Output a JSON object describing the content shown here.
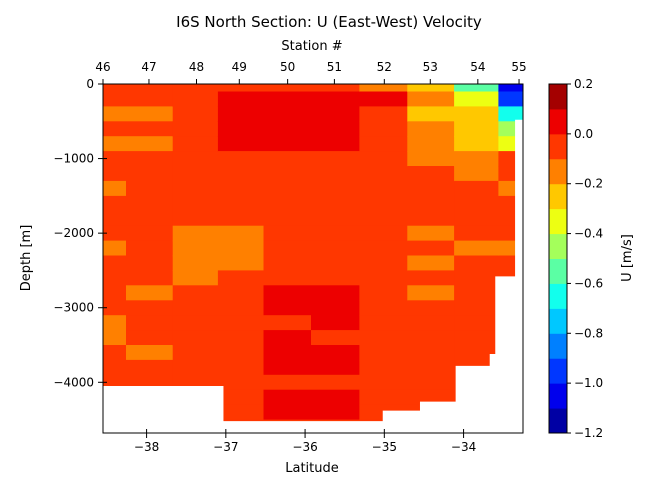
{
  "chart_data": {
    "type": "heatmap",
    "title": "I6S North Section: U (East-West) Velocity",
    "xlabel": "Latitude",
    "ylabel": "Depth [m]",
    "top_xlabel": "Station #",
    "colorbar_label": "U [m/s]",
    "xlim": [
      -38.55,
      -33.25
    ],
    "ylim": [
      -4680,
      0
    ],
    "x_ticks": [
      -38,
      -37,
      -36,
      -35,
      -34
    ],
    "x_tick_labels": [
      "−38",
      "−37",
      "−36",
      "−35",
      "−34"
    ],
    "y_ticks": [
      0,
      -1000,
      -2000,
      -3000,
      -4000
    ],
    "y_tick_labels": [
      "0",
      "−1000",
      "−2000",
      "−3000",
      "−4000"
    ],
    "top_ticks": [
      {
        "label": "46",
        "lat": -38.55
      },
      {
        "label": "47",
        "lat": -37.97
      },
      {
        "label": "48",
        "lat": -37.37
      },
      {
        "label": "49",
        "lat": -36.83
      },
      {
        "label": "50",
        "lat": -36.22
      },
      {
        "label": "51",
        "lat": -35.63
      },
      {
        "label": "52",
        "lat": -35.0
      },
      {
        "label": "53",
        "lat": -34.42
      },
      {
        "label": "54",
        "lat": -33.82
      },
      {
        "label": "55",
        "lat": -33.3
      }
    ],
    "colorbar": {
      "min": -1.2,
      "max": 0.2,
      "step": 0.1,
      "ticks": [
        0.2,
        0.0,
        -0.2,
        -0.4,
        -0.6,
        -0.8,
        -1.0,
        -1.2
      ],
      "tick_labels": [
        "0.2",
        "0.0",
        "−0.2",
        "−0.4",
        "−0.6",
        "−0.8",
        "−1.0",
        "−1.2"
      ]
    },
    "colors": {
      "dark_red": "#b00000",
      "red": "#ee1a00",
      "orange_red": "#ff5a00",
      "orange": "#ff9a00",
      "light_orange": "#ffc000",
      "yellow": "#e8ee00",
      "cyan": "#30d8ff",
      "blue": "#1030ff"
    },
    "bottom_profile": [
      {
        "lat": -38.55,
        "depth": -4050
      },
      {
        "lat": -37.03,
        "depth": -4520
      },
      {
        "lat": -35.02,
        "depth": -4380
      },
      {
        "lat": -34.55,
        "depth": -4260
      },
      {
        "lat": -34.1,
        "depth": -3780
      },
      {
        "lat": -33.67,
        "depth": -3620
      },
      {
        "lat": -33.6,
        "depth": -2580
      },
      {
        "lat": -33.35,
        "depth": -2580
      },
      {
        "lat": -33.35,
        "depth": -480
      },
      {
        "lat": -33.25,
        "depth": -480
      }
    ],
    "sections": [
      {
        "station": 46,
        "lat": -38.55,
        "u": [
          -0.1,
          -0.1,
          -0.15,
          -0.1,
          -0.15,
          -0.1,
          -0.1,
          -0.15,
          -0.1,
          -0.05,
          -0.1,
          -0.15,
          -0.1,
          -0.05,
          -0.1,
          -0.1,
          -0.15,
          -0.15,
          -0.1,
          -0.1,
          -0.1,
          -0.1,
          -0.05,
          -0.05
        ]
      },
      {
        "station": 47,
        "lat": -37.97,
        "u": [
          -0.1,
          -0.05,
          -0.15,
          -0.1,
          -0.15,
          -0.1,
          -0.1,
          -0.1,
          -0.1,
          -0.1,
          -0.1,
          -0.1,
          -0.1,
          -0.1,
          -0.15,
          -0.1,
          -0.1,
          -0.1,
          -0.15,
          -0.1,
          -0.1,
          -0.15,
          -0.1,
          -0.05
        ]
      },
      {
        "station": 48,
        "lat": -37.37,
        "u": [
          -0.05,
          -0.05,
          -0.1,
          -0.05,
          -0.1,
          -0.1,
          -0.1,
          -0.1,
          -0.1,
          -0.1,
          -0.15,
          -0.2,
          -0.2,
          -0.15,
          -0.1,
          -0.1,
          -0.1,
          -0.1,
          -0.1,
          -0.1,
          -0.1,
          -0.1,
          -0.1,
          -0.05
        ]
      },
      {
        "station": 49,
        "lat": -36.83,
        "u": [
          -0.05,
          0.05,
          0.05,
          0.0,
          0.0,
          -0.1,
          -0.1,
          -0.1,
          -0.1,
          -0.1,
          -0.15,
          -0.2,
          -0.15,
          -0.1,
          -0.1,
          -0.1,
          -0.05,
          -0.05,
          -0.1,
          -0.05,
          -0.05,
          -0.05,
          -0.05,
          -0.05
        ]
      },
      {
        "station": 50,
        "lat": -36.22,
        "u": [
          -0.05,
          0.05,
          0.05,
          0.0,
          0.0,
          -0.1,
          -0.1,
          -0.1,
          -0.1,
          -0.1,
          -0.1,
          -0.1,
          -0.1,
          -0.05,
          0.0,
          0.0,
          -0.05,
          0.0,
          0.0,
          0.0,
          -0.05,
          0.0,
          0.0,
          -0.05
        ]
      },
      {
        "station": 51,
        "lat": -35.63,
        "u": [
          -0.05,
          0.0,
          0.0,
          0.0,
          0.0,
          -0.1,
          -0.1,
          -0.1,
          -0.1,
          -0.1,
          -0.1,
          -0.1,
          -0.05,
          -0.05,
          0.0,
          0.0,
          0.0,
          -0.05,
          0.0,
          0.0,
          -0.05,
          0.0,
          0.0,
          -0.05
        ]
      },
      {
        "station": 52,
        "lat": -35.0,
        "u": [
          -0.2,
          0.0,
          -0.05,
          -0.1,
          -0.1,
          -0.1,
          -0.1,
          -0.1,
          -0.1,
          -0.1,
          -0.1,
          -0.1,
          -0.1,
          -0.05,
          -0.1,
          -0.1,
          -0.05,
          -0.05,
          -0.1,
          -0.05,
          -0.1,
          -0.05,
          -0.05,
          -0.05
        ]
      },
      {
        "station": 53,
        "lat": -34.42,
        "u": [
          -0.3,
          -0.2,
          -0.25,
          -0.2,
          -0.15,
          -0.15,
          -0.1,
          -0.1,
          -0.1,
          -0.1,
          -0.15,
          -0.1,
          -0.15,
          -0.1,
          -0.15,
          -0.1,
          -0.1,
          -0.1,
          -0.05,
          -0.1,
          -0.05,
          -0.1,
          -0.05,
          -0.05
        ]
      },
      {
        "station": 54,
        "lat": -33.82,
        "u": [
          -0.6,
          -0.4,
          -0.3,
          -0.25,
          -0.25,
          -0.2,
          -0.15,
          -0.1,
          -0.1,
          -0.1,
          -0.1,
          -0.15,
          -0.1,
          -0.1,
          -0.05,
          -0.1,
          -0.1,
          -0.1,
          -0.1,
          -0.1,
          -0.05,
          -0.1,
          -0.1,
          -0.05
        ]
      },
      {
        "station": 55,
        "lat": -33.3,
        "u": [
          -1.1,
          -0.95,
          -0.7,
          -0.5,
          -0.35,
          -0.1,
          -0.1,
          -0.15,
          -0.1,
          -0.05,
          -0.1,
          -0.15,
          -0.1,
          -0.1,
          -0.1,
          -0.05,
          -0.1,
          -0.05,
          -0.05,
          -0.05,
          -0.05,
          -0.05,
          -0.05,
          -0.05
        ]
      }
    ],
    "depth_levels_m": [
      0,
      -200,
      -400,
      -600,
      -800,
      -1000,
      -1200,
      -1400,
      -1600,
      -1800,
      -2000,
      -2200,
      -2400,
      -2600,
      -2800,
      -3000,
      -3200,
      -3400,
      -3600,
      -3800,
      -4000,
      -4200,
      -4400,
      -4600
    ]
  }
}
